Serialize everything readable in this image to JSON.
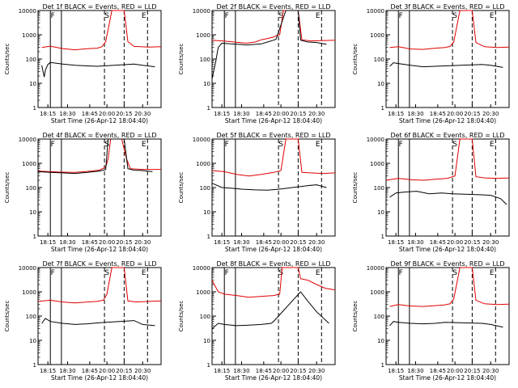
{
  "figure": {
    "ylabel": "Counts/sec",
    "xlabel_prefix": "Start Time",
    "start_time": "(26-Apr-12 18:04:40)",
    "x_ticks": [
      "18:15",
      "18:30",
      "18:45",
      "20:00",
      "20:15",
      "20:30"
    ],
    "y_ticks": [
      "1",
      "10",
      "100",
      "1000",
      "10000"
    ],
    "colors": {
      "events": "#000000",
      "lld": "#e00000"
    }
  },
  "chart_data": [
    {
      "type": "line",
      "title": "Det 1f BLACK = Events, RED = LLD",
      "marks": [
        "F",
        "S",
        "E"
      ],
      "events": [
        [
          0.03,
          55
        ],
        [
          0.05,
          18
        ],
        [
          0.06,
          35
        ],
        [
          0.08,
          60
        ],
        [
          0.1,
          72
        ],
        [
          0.2,
          62
        ],
        [
          0.3,
          55
        ],
        [
          0.4,
          52
        ],
        [
          0.48,
          50
        ],
        [
          0.78,
          62
        ],
        [
          0.85,
          55
        ],
        [
          0.95,
          48
        ]
      ],
      "lld": [
        [
          0.03,
          300
        ],
        [
          0.1,
          340
        ],
        [
          0.2,
          270
        ],
        [
          0.3,
          240
        ],
        [
          0.4,
          265
        ],
        [
          0.48,
          280
        ],
        [
          0.52,
          320
        ],
        [
          0.55,
          520
        ],
        [
          0.6,
          10000
        ],
        [
          0.7,
          10000
        ],
        [
          0.73,
          520
        ],
        [
          0.78,
          330
        ],
        [
          0.9,
          310
        ],
        [
          1.0,
          320
        ]
      ]
    },
    {
      "type": "line",
      "title": "Det 2f BLACK = Events, RED = LLD",
      "marks": [
        "F",
        "S",
        "E"
      ],
      "events": [
        [
          0.0,
          15
        ],
        [
          0.03,
          80
        ],
        [
          0.05,
          300
        ],
        [
          0.08,
          450
        ],
        [
          0.15,
          420
        ],
        [
          0.22,
          400
        ],
        [
          0.28,
          380
        ],
        [
          0.35,
          400
        ],
        [
          0.4,
          420
        ],
        [
          0.45,
          500
        ],
        [
          0.5,
          600
        ],
        [
          0.52,
          650
        ],
        [
          0.6,
          10000
        ],
        [
          0.7,
          10000
        ],
        [
          0.72,
          600
        ],
        [
          0.78,
          500
        ],
        [
          0.85,
          480
        ],
        [
          0.93,
          400
        ]
      ],
      "lld": [
        [
          0.0,
          600
        ],
        [
          0.08,
          560
        ],
        [
          0.15,
          520
        ],
        [
          0.22,
          480
        ],
        [
          0.28,
          450
        ],
        [
          0.35,
          500
        ],
        [
          0.4,
          620
        ],
        [
          0.45,
          700
        ],
        [
          0.5,
          800
        ],
        [
          0.52,
          900
        ],
        [
          0.55,
          1000
        ],
        [
          0.58,
          10000
        ],
        [
          0.7,
          10000
        ],
        [
          0.73,
          620
        ],
        [
          0.8,
          560
        ],
        [
          1.0,
          600
        ]
      ]
    },
    {
      "type": "line",
      "title": "Det 3f BLACK = Events, RED = LLD",
      "marks": [
        "F",
        "S",
        "E"
      ],
      "events": [
        [
          0.03,
          50
        ],
        [
          0.06,
          70
        ],
        [
          0.1,
          65
        ],
        [
          0.2,
          55
        ],
        [
          0.3,
          48
        ],
        [
          0.4,
          50
        ],
        [
          0.48,
          52
        ],
        [
          0.78,
          60
        ],
        [
          0.85,
          55
        ],
        [
          0.95,
          45
        ]
      ],
      "lld": [
        [
          0.03,
          300
        ],
        [
          0.1,
          320
        ],
        [
          0.2,
          260
        ],
        [
          0.3,
          250
        ],
        [
          0.4,
          280
        ],
        [
          0.48,
          300
        ],
        [
          0.52,
          330
        ],
        [
          0.55,
          500
        ],
        [
          0.6,
          10000
        ],
        [
          0.7,
          10000
        ],
        [
          0.73,
          480
        ],
        [
          0.8,
          320
        ],
        [
          0.9,
          300
        ],
        [
          1.0,
          310
        ]
      ]
    },
    {
      "type": "line",
      "title": "Det 4f BLACK = Events, RED = LLD",
      "marks": [
        "F",
        "S",
        "E"
      ],
      "events": [
        [
          0.0,
          450
        ],
        [
          0.1,
          420
        ],
        [
          0.2,
          400
        ],
        [
          0.3,
          380
        ],
        [
          0.4,
          420
        ],
        [
          0.5,
          480
        ],
        [
          0.55,
          550
        ],
        [
          0.57,
          10000
        ],
        [
          0.7,
          10000
        ],
        [
          0.73,
          600
        ],
        [
          0.78,
          520
        ],
        [
          0.85,
          500
        ],
        [
          0.93,
          450
        ]
      ],
      "lld": [
        [
          0.0,
          480
        ],
        [
          0.1,
          450
        ],
        [
          0.2,
          430
        ],
        [
          0.3,
          420
        ],
        [
          0.4,
          460
        ],
        [
          0.5,
          520
        ],
        [
          0.55,
          700
        ],
        [
          0.57,
          1500
        ],
        [
          0.59,
          10000
        ],
        [
          0.68,
          10000
        ],
        [
          0.72,
          1500
        ],
        [
          0.75,
          600
        ],
        [
          0.85,
          560
        ],
        [
          1.0,
          560
        ]
      ]
    },
    {
      "type": "line",
      "title": "Det 5f BLACK = Events, RED = LLD",
      "marks": [
        "F",
        "S",
        "E"
      ],
      "events": [
        [
          0.0,
          150
        ],
        [
          0.08,
          100
        ],
        [
          0.15,
          95
        ],
        [
          0.25,
          85
        ],
        [
          0.35,
          80
        ],
        [
          0.45,
          78
        ],
        [
          0.54,
          85
        ],
        [
          0.78,
          120
        ],
        [
          0.85,
          130
        ],
        [
          0.93,
          100
        ]
      ],
      "lld": [
        [
          0.0,
          500
        ],
        [
          0.1,
          450
        ],
        [
          0.2,
          350
        ],
        [
          0.3,
          300
        ],
        [
          0.4,
          350
        ],
        [
          0.5,
          420
        ],
        [
          0.56,
          500
        ],
        [
          0.6,
          10000
        ],
        [
          0.7,
          10000
        ],
        [
          0.73,
          420
        ],
        [
          0.8,
          400
        ],
        [
          0.9,
          380
        ],
        [
          1.0,
          400
        ]
      ]
    },
    {
      "type": "line",
      "title": "Det 6f BLACK = Events, RED = LLD",
      "marks": [
        "F",
        "S",
        "E"
      ],
      "events": [
        [
          0.03,
          40
        ],
        [
          0.08,
          60
        ],
        [
          0.15,
          65
        ],
        [
          0.25,
          70
        ],
        [
          0.35,
          55
        ],
        [
          0.45,
          60
        ],
        [
          0.54,
          55
        ],
        [
          0.78,
          50
        ],
        [
          0.85,
          48
        ],
        [
          0.93,
          35
        ],
        [
          0.98,
          20
        ]
      ],
      "lld": [
        [
          0.0,
          200
        ],
        [
          0.1,
          240
        ],
        [
          0.2,
          210
        ],
        [
          0.3,
          200
        ],
        [
          0.4,
          220
        ],
        [
          0.5,
          240
        ],
        [
          0.56,
          300
        ],
        [
          0.6,
          10000
        ],
        [
          0.7,
          10000
        ],
        [
          0.73,
          280
        ],
        [
          0.8,
          250
        ],
        [
          0.9,
          240
        ],
        [
          1.0,
          250
        ]
      ]
    },
    {
      "type": "line",
      "title": "Det 7f BLACK = Events, RED = LLD",
      "marks": [
        "F",
        "S",
        "E"
      ],
      "events": [
        [
          0.03,
          50
        ],
        [
          0.06,
          80
        ],
        [
          0.1,
          60
        ],
        [
          0.2,
          50
        ],
        [
          0.3,
          45
        ],
        [
          0.4,
          48
        ],
        [
          0.48,
          52
        ],
        [
          0.78,
          65
        ],
        [
          0.85,
          45
        ],
        [
          0.95,
          40
        ]
      ],
      "lld": [
        [
          0.0,
          400
        ],
        [
          0.1,
          450
        ],
        [
          0.2,
          380
        ],
        [
          0.3,
          350
        ],
        [
          0.4,
          380
        ],
        [
          0.48,
          400
        ],
        [
          0.53,
          450
        ],
        [
          0.56,
          800
        ],
        [
          0.6,
          10000
        ],
        [
          0.7,
          10000
        ],
        [
          0.73,
          420
        ],
        [
          0.8,
          380
        ],
        [
          0.9,
          400
        ],
        [
          1.0,
          420
        ]
      ]
    },
    {
      "type": "line",
      "title": "Det 8f BLACK = Events, RED = LLD",
      "marks": [
        "F",
        "S",
        "E"
      ],
      "events": [
        [
          0.0,
          30
        ],
        [
          0.05,
          50
        ],
        [
          0.1,
          45
        ],
        [
          0.2,
          40
        ],
        [
          0.3,
          42
        ],
        [
          0.4,
          45
        ],
        [
          0.48,
          50
        ],
        [
          0.5,
          60
        ],
        [
          0.72,
          1000
        ],
        [
          0.78,
          400
        ],
        [
          0.85,
          150
        ],
        [
          0.95,
          50
        ]
      ],
      "lld": [
        [
          0.0,
          3000
        ],
        [
          0.05,
          1000
        ],
        [
          0.1,
          800
        ],
        [
          0.2,
          700
        ],
        [
          0.3,
          600
        ],
        [
          0.4,
          650
        ],
        [
          0.5,
          700
        ],
        [
          0.55,
          800
        ],
        [
          0.57,
          10000
        ],
        [
          0.7,
          10000
        ],
        [
          0.72,
          3500
        ],
        [
          0.78,
          3000
        ],
        [
          0.85,
          2000
        ],
        [
          0.92,
          1400
        ],
        [
          1.0,
          1200
        ]
      ]
    },
    {
      "type": "line",
      "title": "Det 9f BLACK = Events, RED = LLD",
      "marks": [
        "F",
        "S",
        "E"
      ],
      "events": [
        [
          0.03,
          40
        ],
        [
          0.06,
          60
        ],
        [
          0.1,
          55
        ],
        [
          0.2,
          50
        ],
        [
          0.3,
          48
        ],
        [
          0.4,
          50
        ],
        [
          0.48,
          55
        ],
        [
          0.78,
          50
        ],
        [
          0.85,
          45
        ],
        [
          0.95,
          35
        ]
      ],
      "lld": [
        [
          0.03,
          250
        ],
        [
          0.1,
          300
        ],
        [
          0.2,
          260
        ],
        [
          0.3,
          250
        ],
        [
          0.4,
          270
        ],
        [
          0.48,
          290
        ],
        [
          0.52,
          320
        ],
        [
          0.55,
          500
        ],
        [
          0.6,
          10000
        ],
        [
          0.7,
          10000
        ],
        [
          0.73,
          450
        ],
        [
          0.8,
          320
        ],
        [
          0.9,
          300
        ],
        [
          1.0,
          310
        ]
      ]
    }
  ]
}
